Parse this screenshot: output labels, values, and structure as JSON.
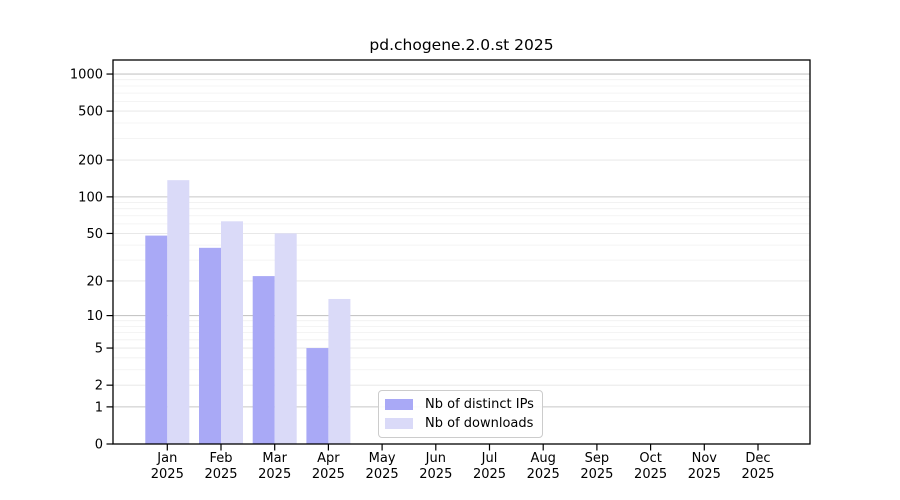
{
  "figure": {
    "background": "#ffffff"
  },
  "chart_data": {
    "type": "bar",
    "title": "pd.chogene.2.0.st 2025",
    "xlabel": "",
    "ylabel": "",
    "scale": "log10(1+y)",
    "ylim": [
      0,
      1300
    ],
    "grid": "on",
    "categories": [
      "Jan",
      "Feb",
      "Mar",
      "Apr",
      "May",
      "Jun",
      "Jul",
      "Aug",
      "Sep",
      "Oct",
      "Nov",
      "Dec"
    ],
    "category_year": "2025",
    "series": [
      {
        "id": "distinct-ips",
        "name": "Nb of distinct IPs",
        "color": "#a9a9f6",
        "values": [
          48,
          38,
          22,
          5,
          0,
          0,
          0,
          0,
          0,
          0,
          0,
          0
        ]
      },
      {
        "id": "downloads",
        "name": "Nb of downloads",
        "color": "#dadaf8",
        "values": [
          137,
          63,
          50,
          14,
          0,
          0,
          0,
          0,
          0,
          0,
          0,
          0
        ]
      }
    ],
    "y_ticks": [
      0,
      1,
      2,
      5,
      10,
      20,
      50,
      100,
      200,
      500,
      1000
    ],
    "y_minor_ticks": [
      3,
      4,
      6,
      7,
      8,
      9,
      30,
      40,
      60,
      70,
      80,
      90,
      300,
      400,
      600,
      700,
      800,
      900
    ],
    "grid_colors": {
      "decade": "#c6c6c6",
      "labeled": "#e5e5e5",
      "minor": "#f0f0f0"
    },
    "legend": {
      "position": "bottom-center"
    }
  }
}
